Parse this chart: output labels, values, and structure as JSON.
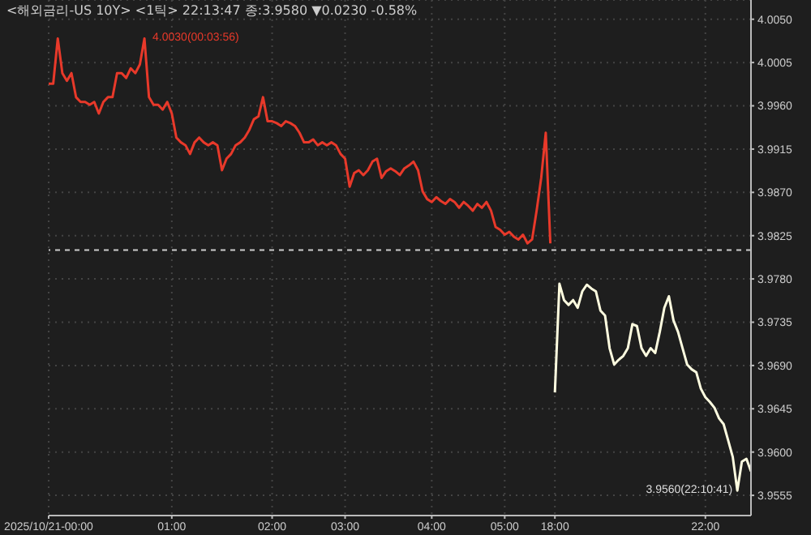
{
  "chart_data": {
    "type": "line",
    "title": "<해외금리-US 10Y> <1틱> 22:13:47 종:3.9580 ▼0.0230 -0.58%",
    "categories": [
      "2025/10/21-00:00",
      null,
      null,
      null,
      null,
      null,
      null,
      null,
      null,
      null,
      null,
      null,
      null,
      null,
      null,
      null,
      null,
      null,
      null,
      null,
      null,
      null,
      null,
      null,
      null,
      null,
      null,
      "01:00",
      null,
      null,
      null,
      null,
      null,
      null,
      null,
      null,
      null,
      null,
      null,
      null,
      null,
      null,
      null,
      null,
      null,
      null,
      null,
      null,
      null,
      "02:00",
      null,
      null,
      null,
      null,
      null,
      null,
      null,
      null,
      null,
      null,
      null,
      null,
      null,
      null,
      null,
      "03:00",
      null,
      null,
      null,
      null,
      null,
      null,
      null,
      null,
      null,
      null,
      null,
      null,
      null,
      null,
      null,
      null,
      null,
      null,
      "04:00",
      null,
      null,
      null,
      null,
      null,
      null,
      null,
      null,
      null,
      null,
      null,
      null,
      null,
      null,
      null,
      "05:00",
      null,
      null,
      null,
      null,
      null,
      null,
      null,
      null,
      null,
      null,
      "18:00",
      null,
      null,
      null,
      null,
      null,
      null,
      null,
      null,
      null,
      null,
      null,
      null,
      null,
      null,
      null,
      null,
      null,
      null,
      null,
      null,
      null,
      null,
      null,
      null,
      null,
      null,
      null,
      null,
      null,
      null,
      null,
      null,
      "22:00",
      null,
      null,
      null,
      null,
      null,
      null,
      null,
      null,
      null,
      null
    ],
    "series": [
      {
        "color": "#e8392a",
        "values": [
          3.9983,
          3.9983,
          4.003,
          3.9994,
          3.9986,
          3.9994,
          3.9969,
          3.9964,
          3.9964,
          3.9961,
          3.9964,
          3.9952,
          3.9964,
          3.9969,
          3.9969,
          3.9994,
          3.9994,
          3.9989,
          3.9999,
          3.9994,
          4.0003,
          4.003,
          3.9969,
          3.9961,
          3.9961,
          3.9956,
          3.9964,
          3.9952,
          3.9927,
          3.9922,
          3.9919,
          3.991,
          3.9922,
          3.9927,
          3.9922,
          3.9919,
          3.9922,
          3.9919,
          3.9893,
          3.9905,
          3.991,
          3.9919,
          3.9922,
          3.9927,
          3.9935,
          3.9946,
          3.9949,
          3.9969,
          3.9944,
          3.9944,
          3.9942,
          3.9939,
          3.9944,
          3.9942,
          3.9939,
          3.9932,
          3.9922,
          3.9922,
          3.9925,
          3.9919,
          3.9922,
          3.9919,
          3.9922,
          3.9919,
          3.991,
          3.9905,
          3.9876,
          3.989,
          3.9893,
          3.9888,
          3.9893,
          3.9902,
          3.9905,
          3.9885,
          3.9892,
          3.9895,
          3.9892,
          3.9888,
          3.9895,
          3.9898,
          3.9902,
          3.9893,
          3.9871,
          3.9863,
          3.986,
          3.9865,
          3.9861,
          3.9858,
          3.9863,
          3.986,
          3.9854,
          3.986,
          3.9856,
          3.9851,
          3.9858,
          3.9854,
          3.986,
          3.9851,
          3.9834,
          3.9831,
          3.9826,
          3.9829,
          3.9824,
          3.9821,
          3.9826,
          3.9817,
          3.9821,
          3.9851,
          3.9885,
          3.9932,
          3.9817,
          null,
          null,
          null,
          null,
          null,
          null,
          null,
          null,
          null,
          null,
          null,
          null,
          null,
          null,
          null,
          null,
          null,
          null,
          null,
          null,
          null,
          null,
          null,
          null,
          null,
          null,
          null,
          null,
          null,
          null,
          null,
          null,
          null,
          null,
          null,
          null,
          null,
          null,
          null,
          null,
          null,
          null,
          null,
          null
        ]
      },
      {
        "color": "#fffde0",
        "values": [
          null,
          null,
          null,
          null,
          null,
          null,
          null,
          null,
          null,
          null,
          null,
          null,
          null,
          null,
          null,
          null,
          null,
          null,
          null,
          null,
          null,
          null,
          null,
          null,
          null,
          null,
          null,
          null,
          null,
          null,
          null,
          null,
          null,
          null,
          null,
          null,
          null,
          null,
          null,
          null,
          null,
          null,
          null,
          null,
          null,
          null,
          null,
          null,
          null,
          null,
          null,
          null,
          null,
          null,
          null,
          null,
          null,
          null,
          null,
          null,
          null,
          null,
          null,
          null,
          null,
          null,
          null,
          null,
          null,
          null,
          null,
          null,
          null,
          null,
          null,
          null,
          null,
          null,
          null,
          null,
          null,
          null,
          null,
          null,
          null,
          null,
          null,
          null,
          null,
          null,
          null,
          null,
          null,
          null,
          null,
          null,
          null,
          null,
          null,
          null,
          null,
          null,
          null,
          null,
          null,
          null,
          null,
          null,
          null,
          null,
          null,
          3.9662,
          3.9775,
          3.9758,
          3.9753,
          3.9758,
          3.975,
          3.9767,
          3.9774,
          3.977,
          3.9767,
          3.9747,
          3.9742,
          3.9708,
          3.9691,
          3.9696,
          3.97,
          3.9708,
          3.9733,
          3.9731,
          3.9708,
          3.97,
          3.9708,
          3.9703,
          3.9725,
          3.975,
          3.9762,
          3.9737,
          3.9725,
          3.9708,
          3.9691,
          3.9686,
          3.9683,
          3.9666,
          3.9657,
          3.9652,
          3.9646,
          3.9635,
          3.9629,
          3.9612,
          3.9595,
          3.956,
          3.959,
          3.9593,
          3.958
        ]
      }
    ],
    "ylim": [
      3.9534,
      4.007
    ],
    "yticks": [
      {
        "value": 3.9555,
        "label": "3.9555"
      },
      {
        "value": 3.96,
        "label": "3.9600"
      },
      {
        "value": 3.9645,
        "label": "3.9645"
      },
      {
        "value": 3.969,
        "label": "3.9690"
      },
      {
        "value": 3.9735,
        "label": "3.9735"
      },
      {
        "value": 3.978,
        "label": "3.9780"
      },
      {
        "value": 3.9825,
        "label": "3.9825"
      },
      {
        "value": 3.987,
        "label": "3.9870"
      },
      {
        "value": 3.9915,
        "label": "3.9915"
      },
      {
        "value": 3.996,
        "label": "3.9960"
      },
      {
        "value": 4.0005,
        "label": "4.0005"
      },
      {
        "value": 4.005,
        "label": "4.0050"
      }
    ],
    "ref_lines": [
      {
        "axis": "y",
        "value": 3.981,
        "color": "#cccccc",
        "line_style": "dashed"
      }
    ],
    "annotations": [
      "4.0030(00:03:56)",
      "3.9560(22:10:41)"
    ],
    "grid": true,
    "marker": "none",
    "line_style": "solid"
  }
}
